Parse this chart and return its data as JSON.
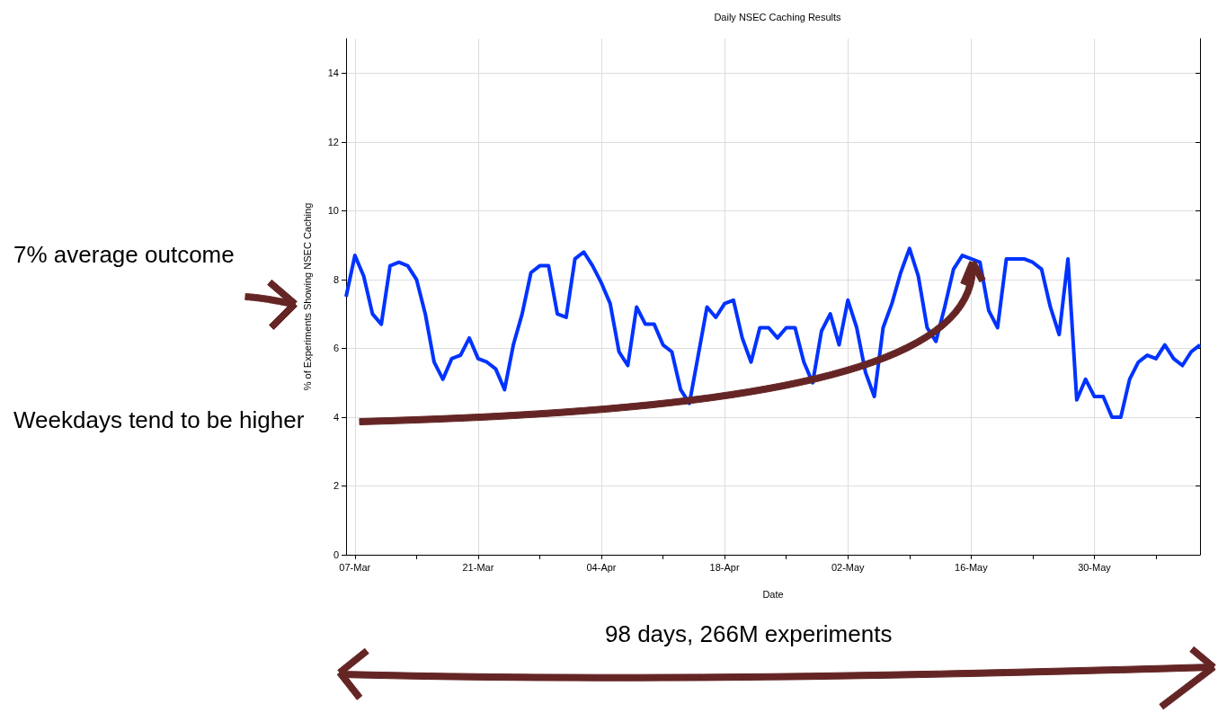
{
  "chart_data": {
    "type": "line",
    "title": "Daily NSEC Caching Results",
    "xlabel": "Date",
    "ylabel": "% of Experiments Showing NSEC Caching",
    "x": [
      "--03-06",
      "--03-07",
      "--03-08",
      "--03-09",
      "--03-10",
      "--03-11",
      "--03-12",
      "--03-13",
      "--03-14",
      "--03-15",
      "--03-16",
      "--03-17",
      "--03-18",
      "--03-19",
      "--03-20",
      "--03-21",
      "--03-22",
      "--03-23",
      "--03-24",
      "--03-25",
      "--03-26",
      "--03-27",
      "--03-28",
      "--03-29",
      "--03-30",
      "--03-31",
      "--04-01",
      "--04-02",
      "--04-03",
      "--04-04",
      "--04-05",
      "--04-06",
      "--04-07",
      "--04-08",
      "--04-09",
      "--04-10",
      "--04-11",
      "--04-12",
      "--04-13",
      "--04-14",
      "--04-15",
      "--04-16",
      "--04-17",
      "--04-18",
      "--04-19",
      "--04-20",
      "--04-21",
      "--04-22",
      "--04-23",
      "--04-24",
      "--04-25",
      "--04-26",
      "--04-27",
      "--04-28",
      "--04-29",
      "--04-30",
      "--05-01",
      "--05-02",
      "--05-03",
      "--05-04",
      "--05-05",
      "--05-06",
      "--05-07",
      "--05-08",
      "--05-09",
      "--05-10",
      "--05-11",
      "--05-12",
      "--05-13",
      "--05-14",
      "--05-15",
      "--05-16",
      "--05-17",
      "--05-18",
      "--05-19",
      "--05-20",
      "--05-21",
      "--05-22",
      "--05-23",
      "--05-24",
      "--05-25",
      "--05-26",
      "--05-27",
      "--05-28",
      "--05-29",
      "--05-30",
      "--05-31",
      "--06-01",
      "--06-02",
      "--06-03",
      "--06-04",
      "--06-05",
      "--06-06",
      "--06-07",
      "--06-08",
      "--06-09",
      "--06-10",
      "--06-11"
    ],
    "series": [
      {
        "color": "#0033ff",
        "values": [
          7.5,
          8.7,
          8.1,
          7.0,
          6.7,
          8.4,
          8.5,
          8.4,
          8.0,
          7.0,
          5.6,
          5.1,
          5.7,
          5.8,
          6.3,
          5.7,
          5.6,
          5.4,
          4.8,
          6.1,
          7.0,
          8.2,
          8.4,
          8.4,
          7.0,
          6.9,
          8.6,
          8.8,
          8.4,
          7.9,
          7.3,
          5.9,
          5.5,
          7.2,
          6.7,
          6.7,
          6.1,
          5.9,
          4.8,
          4.4,
          5.8,
          7.2,
          6.9,
          7.3,
          7.4,
          6.3,
          5.6,
          6.6,
          6.6,
          6.3,
          6.6,
          6.6,
          5.6,
          5.0,
          6.5,
          7.0,
          6.1,
          7.4,
          6.6,
          5.3,
          4.6,
          6.6,
          7.3,
          8.2,
          8.9,
          8.1,
          6.6,
          6.2,
          7.2,
          8.3,
          8.7,
          8.6,
          8.5,
          7.1,
          6.6,
          8.6,
          8.6,
          8.6,
          8.5,
          8.3,
          7.2,
          6.4,
          8.6,
          4.5,
          5.1,
          4.6,
          4.6,
          4.0,
          4.0,
          5.1,
          5.6,
          5.8,
          5.7,
          6.1,
          5.7,
          5.5,
          5.9,
          6.1
        ]
      }
    ],
    "xlim": [
      "--03-06",
      "--06-11"
    ],
    "xticks": [
      {
        "value": "--03-07",
        "label": "07-Mar"
      },
      {
        "value": "--03-14",
        "label": null
      },
      {
        "value": "--03-21",
        "label": "21-Mar"
      },
      {
        "value": "--03-28",
        "label": null
      },
      {
        "value": "--04-04",
        "label": "04-Apr"
      },
      {
        "value": "--04-11",
        "label": null
      },
      {
        "value": "--04-18",
        "label": "18-Apr"
      },
      {
        "value": "--04-25",
        "label": null
      },
      {
        "value": "--05-02",
        "label": "02-May"
      },
      {
        "value": "--05-09",
        "label": null
      },
      {
        "value": "--05-16",
        "label": "16-May"
      },
      {
        "value": "--05-23",
        "label": null
      },
      {
        "value": "--05-30",
        "label": "30-May"
      },
      {
        "value": "--06-06",
        "label": null
      }
    ],
    "ylim": [
      0,
      15
    ],
    "yticks": [
      0,
      2,
      4,
      6,
      8,
      10,
      12,
      14
    ],
    "grid": true,
    "marker": "none",
    "line_style": "solid",
    "annotations": [
      "7% average outcome",
      "Weekdays tend to be higher",
      "98 days, 266M experiments"
    ]
  }
}
